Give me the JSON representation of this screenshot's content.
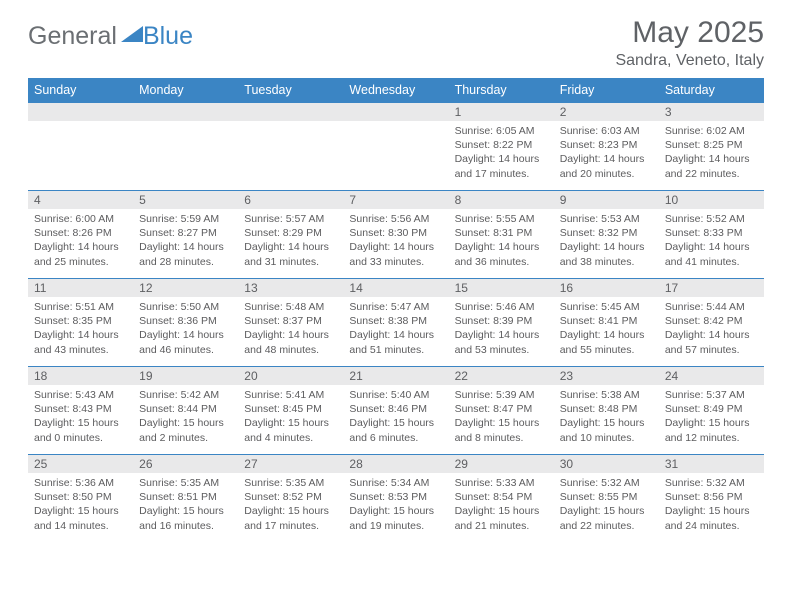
{
  "brand": {
    "part1": "General",
    "part2": "Blue"
  },
  "title": "May 2025",
  "location": "Sandra, Veneto, Italy",
  "colors": {
    "header_bg": "#3b85c4",
    "header_text": "#ffffff",
    "date_band_bg": "#e9e9ea",
    "text": "#5c5c5e",
    "title_text": "#5f6266"
  },
  "weekdays": [
    "Sunday",
    "Monday",
    "Tuesday",
    "Wednesday",
    "Thursday",
    "Friday",
    "Saturday"
  ],
  "weeks": [
    [
      null,
      null,
      null,
      null,
      {
        "date": "1",
        "sunrise": "6:05 AM",
        "sunset": "8:22 PM",
        "daylight": "14 hours and 17 minutes."
      },
      {
        "date": "2",
        "sunrise": "6:03 AM",
        "sunset": "8:23 PM",
        "daylight": "14 hours and 20 minutes."
      },
      {
        "date": "3",
        "sunrise": "6:02 AM",
        "sunset": "8:25 PM",
        "daylight": "14 hours and 22 minutes."
      }
    ],
    [
      {
        "date": "4",
        "sunrise": "6:00 AM",
        "sunset": "8:26 PM",
        "daylight": "14 hours and 25 minutes."
      },
      {
        "date": "5",
        "sunrise": "5:59 AM",
        "sunset": "8:27 PM",
        "daylight": "14 hours and 28 minutes."
      },
      {
        "date": "6",
        "sunrise": "5:57 AM",
        "sunset": "8:29 PM",
        "daylight": "14 hours and 31 minutes."
      },
      {
        "date": "7",
        "sunrise": "5:56 AM",
        "sunset": "8:30 PM",
        "daylight": "14 hours and 33 minutes."
      },
      {
        "date": "8",
        "sunrise": "5:55 AM",
        "sunset": "8:31 PM",
        "daylight": "14 hours and 36 minutes."
      },
      {
        "date": "9",
        "sunrise": "5:53 AM",
        "sunset": "8:32 PM",
        "daylight": "14 hours and 38 minutes."
      },
      {
        "date": "10",
        "sunrise": "5:52 AM",
        "sunset": "8:33 PM",
        "daylight": "14 hours and 41 minutes."
      }
    ],
    [
      {
        "date": "11",
        "sunrise": "5:51 AM",
        "sunset": "8:35 PM",
        "daylight": "14 hours and 43 minutes."
      },
      {
        "date": "12",
        "sunrise": "5:50 AM",
        "sunset": "8:36 PM",
        "daylight": "14 hours and 46 minutes."
      },
      {
        "date": "13",
        "sunrise": "5:48 AM",
        "sunset": "8:37 PM",
        "daylight": "14 hours and 48 minutes."
      },
      {
        "date": "14",
        "sunrise": "5:47 AM",
        "sunset": "8:38 PM",
        "daylight": "14 hours and 51 minutes."
      },
      {
        "date": "15",
        "sunrise": "5:46 AM",
        "sunset": "8:39 PM",
        "daylight": "14 hours and 53 minutes."
      },
      {
        "date": "16",
        "sunrise": "5:45 AM",
        "sunset": "8:41 PM",
        "daylight": "14 hours and 55 minutes."
      },
      {
        "date": "17",
        "sunrise": "5:44 AM",
        "sunset": "8:42 PM",
        "daylight": "14 hours and 57 minutes."
      }
    ],
    [
      {
        "date": "18",
        "sunrise": "5:43 AM",
        "sunset": "8:43 PM",
        "daylight": "15 hours and 0 minutes."
      },
      {
        "date": "19",
        "sunrise": "5:42 AM",
        "sunset": "8:44 PM",
        "daylight": "15 hours and 2 minutes."
      },
      {
        "date": "20",
        "sunrise": "5:41 AM",
        "sunset": "8:45 PM",
        "daylight": "15 hours and 4 minutes."
      },
      {
        "date": "21",
        "sunrise": "5:40 AM",
        "sunset": "8:46 PM",
        "daylight": "15 hours and 6 minutes."
      },
      {
        "date": "22",
        "sunrise": "5:39 AM",
        "sunset": "8:47 PM",
        "daylight": "15 hours and 8 minutes."
      },
      {
        "date": "23",
        "sunrise": "5:38 AM",
        "sunset": "8:48 PM",
        "daylight": "15 hours and 10 minutes."
      },
      {
        "date": "24",
        "sunrise": "5:37 AM",
        "sunset": "8:49 PM",
        "daylight": "15 hours and 12 minutes."
      }
    ],
    [
      {
        "date": "25",
        "sunrise": "5:36 AM",
        "sunset": "8:50 PM",
        "daylight": "15 hours and 14 minutes."
      },
      {
        "date": "26",
        "sunrise": "5:35 AM",
        "sunset": "8:51 PM",
        "daylight": "15 hours and 16 minutes."
      },
      {
        "date": "27",
        "sunrise": "5:35 AM",
        "sunset": "8:52 PM",
        "daylight": "15 hours and 17 minutes."
      },
      {
        "date": "28",
        "sunrise": "5:34 AM",
        "sunset": "8:53 PM",
        "daylight": "15 hours and 19 minutes."
      },
      {
        "date": "29",
        "sunrise": "5:33 AM",
        "sunset": "8:54 PM",
        "daylight": "15 hours and 21 minutes."
      },
      {
        "date": "30",
        "sunrise": "5:32 AM",
        "sunset": "8:55 PM",
        "daylight": "15 hours and 22 minutes."
      },
      {
        "date": "31",
        "sunrise": "5:32 AM",
        "sunset": "8:56 PM",
        "daylight": "15 hours and 24 minutes."
      }
    ]
  ]
}
